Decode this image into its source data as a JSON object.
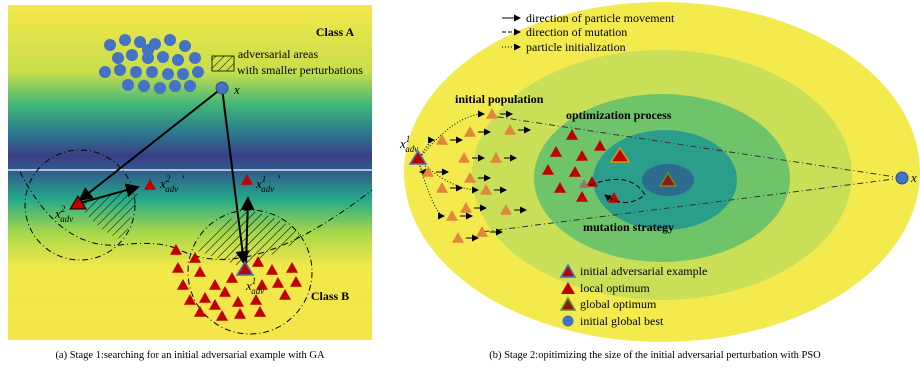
{
  "panel_a": {
    "class_a": "Class A",
    "adversarial_areas": [
      "adversarial areas",
      "with smaller perturbations"
    ],
    "x_label": "x",
    "x_adv2_prime": {
      "base": "x",
      "sub": "adv",
      "sup": "2",
      "prime": "′"
    },
    "x_adv1_prime": {
      "base": "x",
      "sub": "adv",
      "sup": "1",
      "prime": "′"
    },
    "x_adv2": {
      "base": "x",
      "sub": "adv",
      "sup": "2"
    },
    "x_adv1": {
      "base": "x",
      "sub": "adv",
      "sup": "1"
    },
    "class_b": "Class B",
    "caption": "(a) Stage 1:searching for an initial adversarial example with GA"
  },
  "panel_b": {
    "legend_top": [
      "direction of particle movement",
      "direction of mutation",
      "particle initialization"
    ],
    "initial_population": "initial population",
    "optimization_process": "optimization process",
    "mutation_strategy": "mutation strategy",
    "x_adv1": {
      "base": "x",
      "sub": "adv",
      "sup": "1"
    },
    "x_label": "x",
    "legend_bottom": [
      "initial adversarial example",
      "local optimum",
      "global optimum",
      "initial global best"
    ],
    "caption": "(b) Stage 2:opitimizing the size of the initial adversarial perturbation with PSO"
  }
}
